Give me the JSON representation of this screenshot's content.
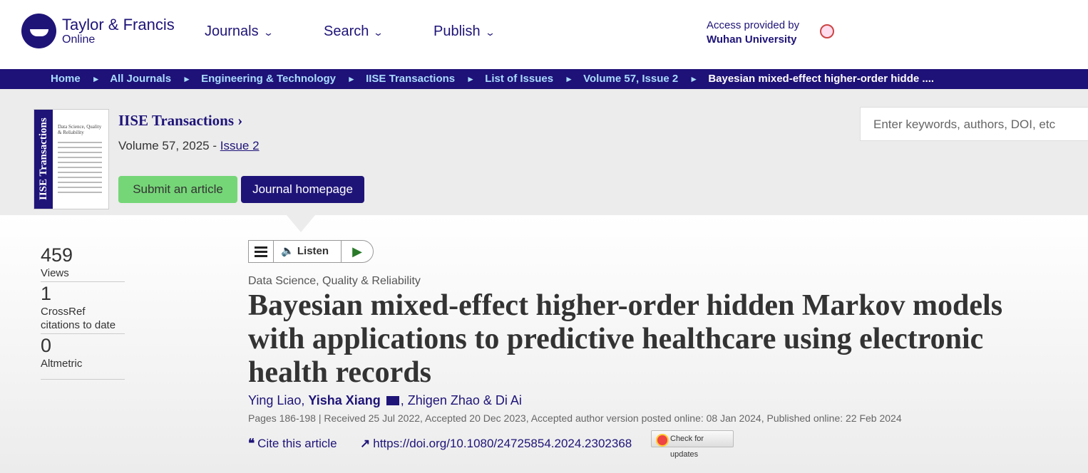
{
  "brand": {
    "name": "Taylor & Francis",
    "sub": "Online"
  },
  "nav": [
    {
      "label": "Journals"
    },
    {
      "label": "Search"
    },
    {
      "label": "Publish"
    }
  ],
  "access": {
    "label": "Access provided by",
    "institution": "Wuhan University"
  },
  "breadcrumb": [
    "Home",
    "All Journals",
    "Engineering & Technology",
    "IISE Transactions",
    "List of Issues",
    "Volume 57, Issue 2",
    "Bayesian mixed-effect higher-order hidde ...."
  ],
  "journal": {
    "title": "IISE Transactions",
    "cover_spine": "IISE Transactions",
    "cover_title": "Data Science, Quality & Reliability",
    "volume": "Volume 57, 2025 - ",
    "issue": "Issue 2",
    "submit": "Submit an article",
    "homepage": "Journal homepage"
  },
  "search": {
    "placeholder": "Enter keywords, authors, DOI, etc"
  },
  "metrics": [
    {
      "value": "459",
      "label": "Views"
    },
    {
      "value": "1",
      "label": "CrossRef citations to date"
    },
    {
      "value": "0",
      "label": "Altmetric"
    }
  ],
  "listen": {
    "label": "Listen"
  },
  "article": {
    "category": "Data Science, Quality & Reliability",
    "title": "Bayesian mixed-effect higher-order hidden Markov models with applications to predictive healthcare using electronic health records",
    "authors": [
      "Ying Liao,",
      "Yisha Xiang",
      ", Zhigen Zhao & Di Ai"
    ],
    "pages": "Pages 186-198 | Received 25 Jul 2022, Accepted 20 Dec 2023, Accepted author version posted online: 08 Jan 2024, Published online: 22 Feb 2024",
    "cite": "Cite this article",
    "doi": "https://doi.org/10.1080/24725854.2024.2302368",
    "check": "Check for updates"
  }
}
